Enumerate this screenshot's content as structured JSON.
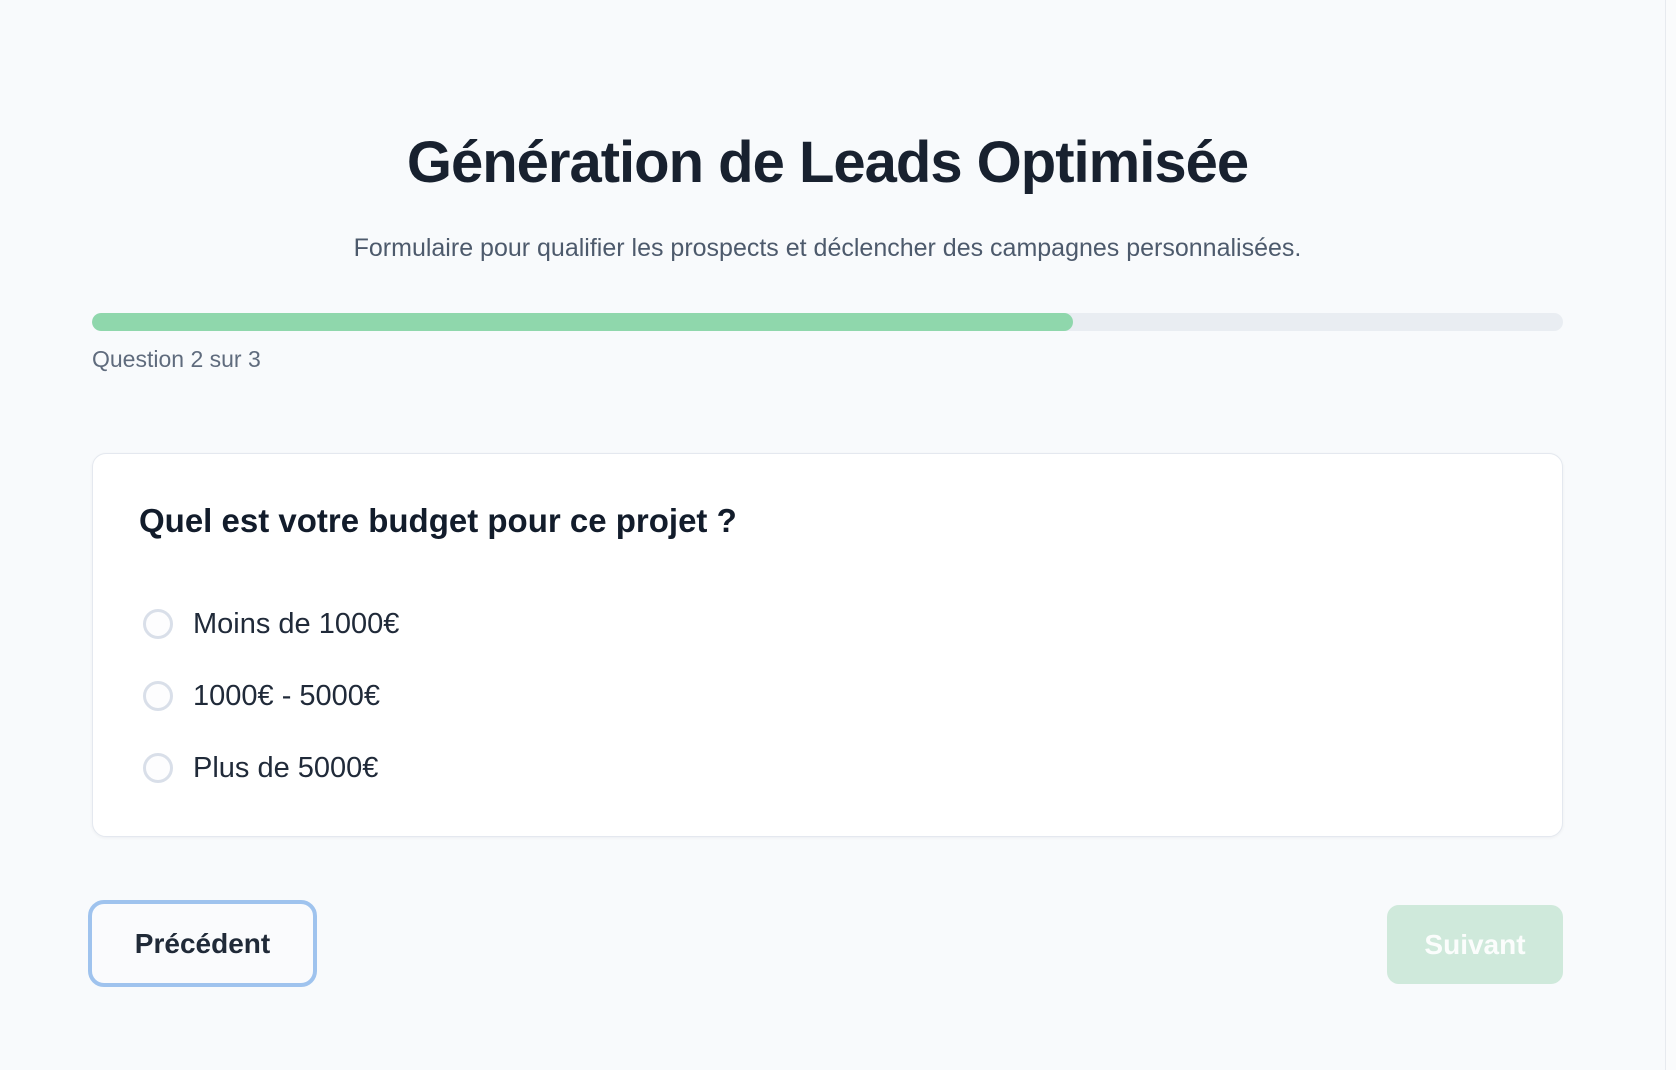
{
  "page": {
    "title": "Génération de Leads Optimisée",
    "subtitle": "Formulaire pour qualifier les prospects et déclencher des campagnes personnalisées.",
    "background_color": "#f8fafc"
  },
  "progress": {
    "label": "Question 2 sur 3",
    "current_question": 2,
    "total_questions": 3,
    "percent": 66.7,
    "fill_color": "#8fd7ac",
    "track_color": "#e9edf2"
  },
  "question": {
    "title": "Quel est votre budget pour ce projet ?",
    "options": [
      {
        "label": "Moins de 1000€",
        "selected": false
      },
      {
        "label": "1000€ - 5000€",
        "selected": false
      },
      {
        "label": "Plus de 5000€",
        "selected": false
      }
    ]
  },
  "navigation": {
    "previous_label": "Précédent",
    "next_label": "Suivant",
    "previous_focused": true,
    "next_disabled": true,
    "focus_ring_color": "#9fc3ee",
    "next_disabled_bg_color": "#cfe9db"
  }
}
